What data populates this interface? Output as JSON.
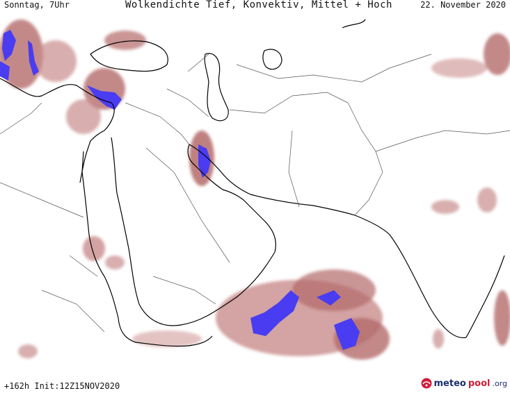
{
  "header": {
    "day_label": "Sonntag, 7Uhr",
    "title": "Wolkendichte  Tief, Konvektiv, Mittel + Hoch",
    "date_label": "22. November 2020"
  },
  "footer": {
    "run_info": "+162h Init:12Z15NOV2020",
    "brand_part1": "meteo",
    "brand_part2": "pool",
    "brand_part3": ".org"
  },
  "colors": {
    "cloud_light": "#e8c8c8",
    "cloud_mid": "#b46a6a",
    "cloud_dark": "#7a2a2a",
    "cloud_dense": "#4a3cf0",
    "coastline": "#000000",
    "border": "#555555"
  }
}
